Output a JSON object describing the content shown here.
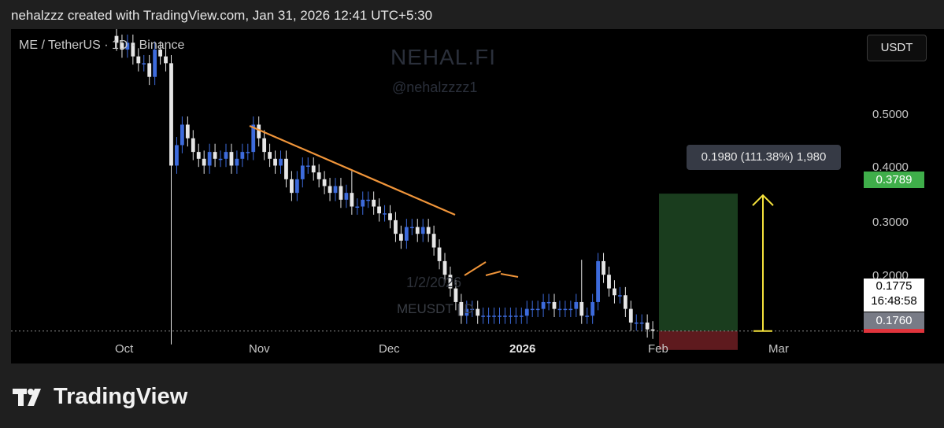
{
  "header": {
    "text": "nehalzzz created with TradingView.com, Jan 31, 2026 12:41 UTC+5:30"
  },
  "chart": {
    "symbol_line": "ME / TetherUS · 1D · Binance",
    "watermark_title": "NEHAL.FI",
    "watermark_handle": "@nehalzzzz1",
    "watermark_date": "1/2/2026",
    "watermark_pair": "MEUSDT | D",
    "currency_button": "USDT",
    "tooltip": "0.1980 (111.38%) 1,980",
    "tag_target": "0.3789",
    "tag_current_price": "0.1775",
    "tag_countdown": "16:48:58",
    "tag_stop": "0.1760"
  },
  "colors": {
    "up": "#3d6bdc",
    "down": "#e6e6e6",
    "trendline": "#f0953a",
    "arrow": "#f5e23c",
    "target_zone": "#1a3d1e",
    "stop_zone": "#5e1a1e"
  },
  "footer": {
    "brand": "TradingView"
  },
  "chart_data": {
    "type": "candlestick",
    "y_axis_labels": [
      "0.5000",
      "0.4000",
      "0.3000",
      "0.2000"
    ],
    "y_ticks": [
      0.5,
      0.4,
      0.3,
      0.2
    ],
    "x_axis_labels": [
      "Oct",
      "Nov",
      "Dec",
      "2026",
      "Feb",
      "Mar"
    ],
    "ylim": [
      0.13,
      0.62
    ],
    "trendline_points": [
      [
        0.47,
        "Oct 26"
      ],
      [
        0.313,
        "Dec 14"
      ]
    ],
    "position": {
      "entry": 0.1775,
      "target": 0.3789,
      "stop": 0.176
    },
    "closes": [
      0.6,
      0.59,
      0.6,
      0.58,
      0.57,
      0.57,
      0.55,
      0.59,
      0.58,
      0.57,
      0.42,
      0.45,
      0.48,
      0.46,
      0.44,
      0.43,
      0.42,
      0.44,
      0.43,
      0.43,
      0.44,
      0.42,
      0.43,
      0.44,
      0.44,
      0.48,
      0.46,
      0.44,
      0.43,
      0.42,
      0.43,
      0.4,
      0.38,
      0.4,
      0.42,
      0.42,
      0.41,
      0.4,
      0.39,
      0.38,
      0.39,
      0.37,
      0.38,
      0.36,
      0.36,
      0.37,
      0.37,
      0.36,
      0.35,
      0.35,
      0.34,
      0.32,
      0.31,
      0.33,
      0.33,
      0.32,
      0.33,
      0.32,
      0.3,
      0.28,
      0.26,
      0.24,
      0.22,
      0.2,
      0.21,
      0.21,
      0.2,
      0.2,
      0.2,
      0.2,
      0.2,
      0.2,
      0.2,
      0.2,
      0.2,
      0.21,
      0.21,
      0.21,
      0.22,
      0.22,
      0.21,
      0.21,
      0.21,
      0.21,
      0.22,
      0.2,
      0.2,
      0.22,
      0.28,
      0.26,
      0.24,
      0.23,
      0.23,
      0.21,
      0.19,
      0.19,
      0.19,
      0.18,
      0.178
    ]
  }
}
